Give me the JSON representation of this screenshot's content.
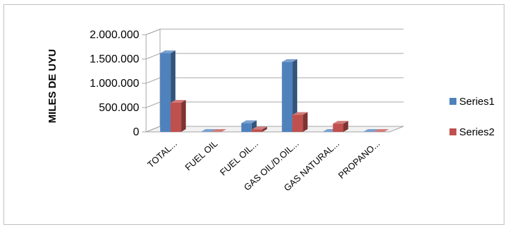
{
  "chart_data": {
    "type": "bar",
    "style": "3d-clustered-column",
    "title": "",
    "xlabel": "",
    "ylabel": "MILES DE UYU",
    "ylim": [
      0,
      2000000
    ],
    "yticks": [
      "0",
      "500.000",
      "1.000.000",
      "1.500.000",
      "2.000.000"
    ],
    "grid": true,
    "legend": "right",
    "categories": [
      "TOTAL...",
      "FUEL OIL",
      "FUEL OIL...",
      "GAS OIL/D.OIL...",
      "GAS NATURAL...",
      "PROPANO..."
    ],
    "series": [
      {
        "name": "Series1",
        "color": "#4f81bd",
        "values": [
          1620000,
          0,
          180000,
          1440000,
          0,
          0
        ]
      },
      {
        "name": "Series2",
        "color": "#c0504d",
        "values": [
          600000,
          0,
          50000,
          350000,
          170000,
          0
        ]
      }
    ]
  }
}
